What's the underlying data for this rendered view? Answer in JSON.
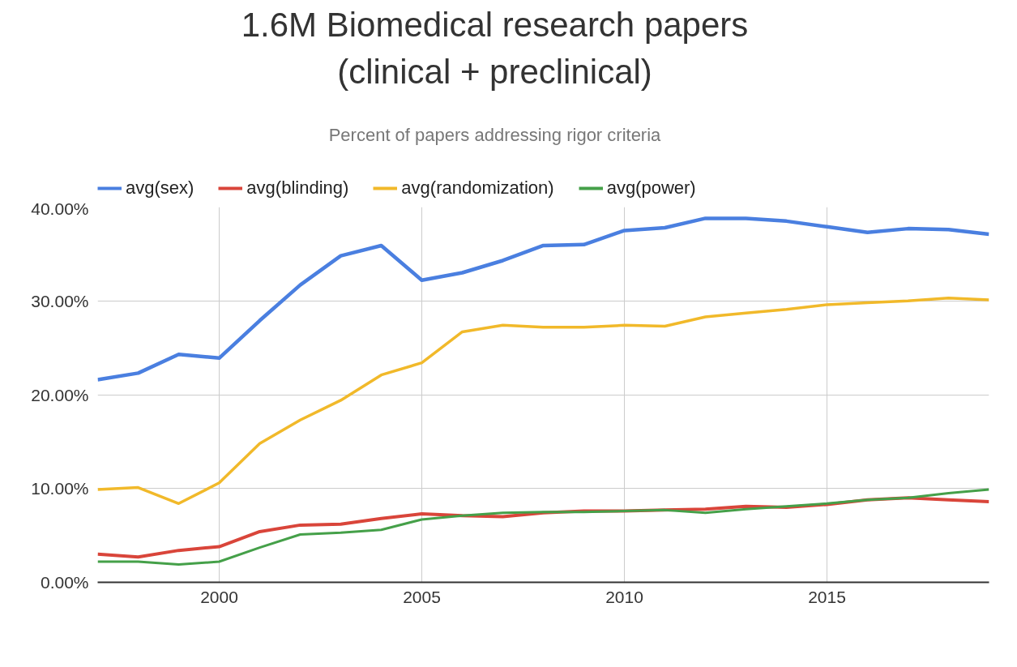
{
  "chart_data": {
    "type": "line",
    "title": "1.6M Biomedical research papers\n(clinical + preclinical)",
    "subtitle": "Percent of papers addressing rigor criteria",
    "x": [
      1997,
      1998,
      1999,
      2000,
      2001,
      2002,
      2003,
      2004,
      2005,
      2006,
      2007,
      2008,
      2009,
      2010,
      2011,
      2012,
      2013,
      2014,
      2015,
      2016,
      2017,
      2018,
      2019
    ],
    "series": [
      {
        "name": "avg(sex)",
        "color": "#4a7fe0",
        "values": [
          21.6,
          22.3,
          24.3,
          23.9,
          27.9,
          31.7,
          34.8,
          35.9,
          32.2,
          33.0,
          34.3,
          35.9,
          36.0,
          37.5,
          37.8,
          38.8,
          38.8,
          38.5,
          37.9,
          37.3,
          37.7,
          37.6,
          37.1
        ]
      },
      {
        "name": "avg(blinding)",
        "color": "#d9453a",
        "values": [
          3.0,
          2.7,
          3.4,
          3.8,
          5.4,
          6.1,
          6.2,
          6.8,
          7.3,
          7.1,
          7.0,
          7.4,
          7.6,
          7.6,
          7.7,
          7.8,
          8.1,
          8.0,
          8.3,
          8.8,
          9.0,
          8.8,
          8.6
        ]
      },
      {
        "name": "avg(randomization)",
        "color": "#f1b92a",
        "values": [
          9.9,
          10.1,
          8.4,
          10.6,
          14.8,
          17.3,
          19.4,
          22.1,
          23.4,
          26.7,
          27.4,
          27.2,
          27.2,
          27.4,
          27.3,
          28.3,
          28.7,
          29.1,
          29.6,
          29.8,
          30.0,
          30.3,
          30.1
        ]
      },
      {
        "name": "avg(power)",
        "color": "#45a049",
        "values": [
          2.2,
          2.2,
          1.9,
          2.2,
          3.7,
          5.1,
          5.3,
          5.6,
          6.7,
          7.1,
          7.4,
          7.5,
          7.5,
          7.6,
          7.7,
          7.4,
          7.8,
          8.1,
          8.4,
          8.8,
          9.0,
          9.5,
          9.9
        ]
      }
    ],
    "xlim": [
      1997,
      2019
    ],
    "xticks": [
      2000,
      2005,
      2010,
      2015
    ],
    "ylim": [
      0,
      40
    ],
    "yticks": [
      {
        "value": 0,
        "label": "0.00%"
      },
      {
        "value": 10,
        "label": "10.00%"
      },
      {
        "value": 20,
        "label": "20.00%"
      },
      {
        "value": 30,
        "label": "30.00%"
      },
      {
        "value": 40,
        "label": "40.00%"
      }
    ],
    "grid": true,
    "legend": "top left",
    "line_style": "solid",
    "marker": "none"
  }
}
